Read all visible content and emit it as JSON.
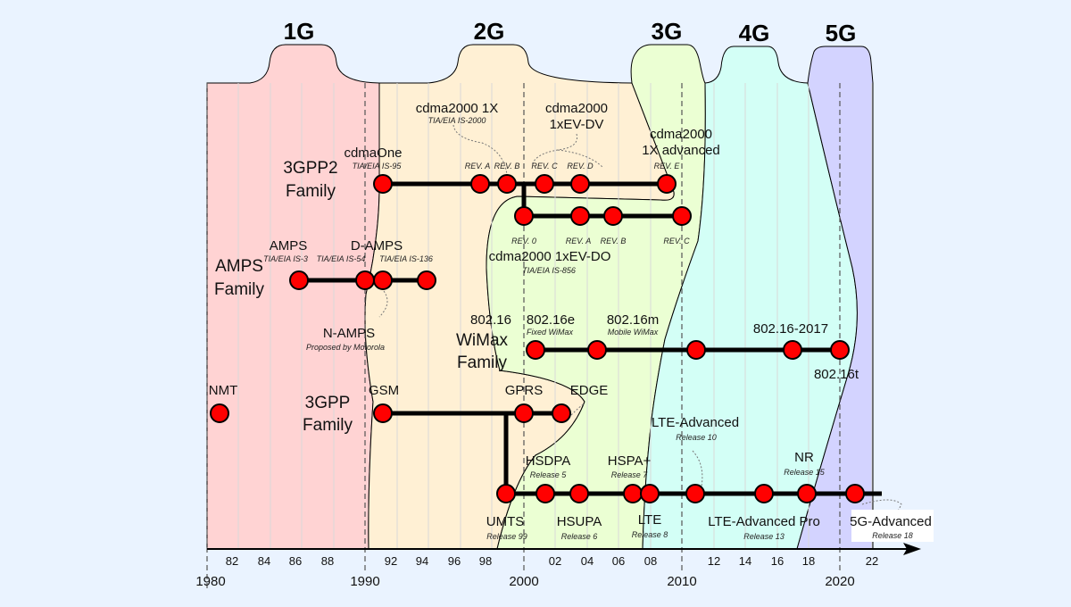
{
  "generations": [
    "1G",
    "2G",
    "3G",
    "4G",
    "5G"
  ],
  "colors": {
    "g1": "#ffd3d3",
    "g2": "#fff0d4",
    "g3": "#ebffd3",
    "g4": "#d3fff6",
    "g5": "#d3d3ff",
    "node": "#ff0000",
    "background": "#eaf3ff"
  },
  "families": {
    "gpp2": [
      "3GPP2",
      "Family"
    ],
    "amps": [
      "AMPS",
      "Family"
    ],
    "wimax": [
      "WiMax",
      "Family"
    ],
    "gpp": [
      "3GPP",
      "Family"
    ]
  },
  "cdma": {
    "cdmaone": "cdmaOne",
    "cdmaone_sub": "TIA/EIA IS-95",
    "onex": "cdma2000 1X",
    "onex_sub": "TIA/EIA IS-2000",
    "evdv1": "cdma2000",
    "evdv2": "1xEV-DV",
    "adv1": "cdma2000",
    "adv2": "1X advanced",
    "revs_top": [
      "REV. A",
      "REV. B",
      "REV. C",
      "REV. D",
      "REV. E"
    ],
    "revs_bottom": [
      "REV. 0",
      "REV. A",
      "REV. B",
      "REV. C"
    ],
    "evdo": "cdma2000 1xEV-DO",
    "evdo_sub": "TIA/EIA IS-856"
  },
  "amps": {
    "amps": "AMPS",
    "amps_sub": "TIA/EIA IS-3",
    "damps": "D-AMPS",
    "is54": "TIA/EIA IS-54",
    "is136": "TIA/EIA IS-136",
    "namps": "N-AMPS",
    "namps_sub": "Proposed by Motorola"
  },
  "wimax": {
    "w1": "802.16",
    "w2": "802.16e",
    "w2_sub": "Fixed WiMax",
    "w3": "802.16m",
    "w3_sub": "Mobile WiMax",
    "w4": "802.16-2017",
    "w5": "802.16t"
  },
  "gpp": {
    "nmt": "NMT",
    "gsm": "GSM",
    "gprs": "GPRS",
    "edge": "EDGE",
    "umts": "UMTS",
    "umts_sub": "Release 99",
    "hsdpa": "HSDPA",
    "hsdpa_sub": "Release 5",
    "hsupa": "HSUPA",
    "hsupa_sub": "Release 6",
    "hspap": "HSPA+",
    "hspap_sub": "Release 7",
    "lte": "LTE",
    "lte_sub": "Release 8",
    "ltea": "LTE-Advanced",
    "ltea_sub": "Release 10",
    "lteap": "LTE-Advanced Pro",
    "lteap_sub": "Release 13",
    "nr": "NR",
    "nr_sub": "Release 15",
    "g5a": "5G-Advanced",
    "g5a_sub": "Release 18"
  },
  "axis": {
    "ticks": [
      "82",
      "84",
      "86",
      "88",
      "92",
      "94",
      "96",
      "98",
      "02",
      "04",
      "06",
      "08",
      "12",
      "14",
      "16",
      "18",
      "22"
    ],
    "decades": [
      "1980",
      "1990",
      "2000",
      "2010",
      "2020"
    ]
  }
}
